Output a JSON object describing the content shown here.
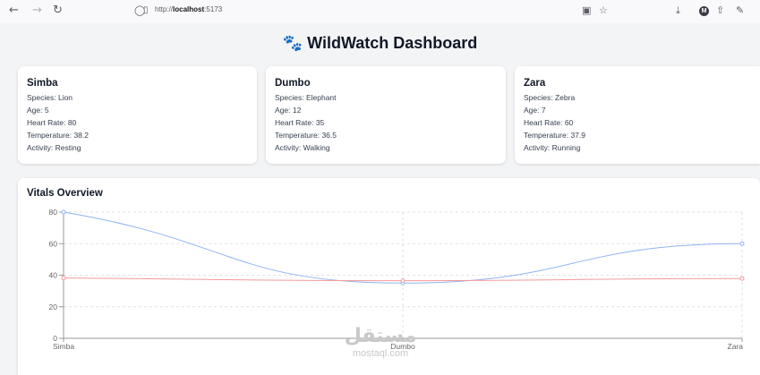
{
  "browser": {
    "url_prefix": "http://",
    "url_host": "localhost",
    "url_suffix": ":5173"
  },
  "header": {
    "icon": "paw-prints-icon",
    "title": "WildWatch Dashboard"
  },
  "animals": [
    {
      "name": "Simba",
      "species": "Species: Lion",
      "age": "Age: 5",
      "heart_rate": "Heart Rate: 80",
      "temperature": "Temperature: 38.2",
      "activity": "Activity: Resting"
    },
    {
      "name": "Dumbo",
      "species": "Species: Elephant",
      "age": "Age: 12",
      "heart_rate": "Heart Rate: 35",
      "temperature": "Temperature: 36.5",
      "activity": "Activity: Walking"
    },
    {
      "name": "Zara",
      "species": "Species: Zebra",
      "age": "Age: 7",
      "heart_rate": "Heart Rate: 60",
      "temperature": "Temperature: 37.9",
      "activity": "Activity: Running"
    }
  ],
  "chart": {
    "title": "Vitals Overview"
  },
  "chart_data": {
    "type": "line",
    "title": "Vitals Overview",
    "categories": [
      "Simba",
      "Dumbo",
      "Zara"
    ],
    "series": [
      {
        "values": [
          80,
          35,
          60
        ],
        "color": "#8fb4f2"
      },
      {
        "values": [
          38.2,
          36.5,
          37.9
        ],
        "color": "#f29b9b"
      }
    ],
    "ylim": [
      0,
      80
    ],
    "yticks": [
      0,
      20,
      40,
      60,
      80
    ],
    "grid": true,
    "curve": "smooth"
  },
  "watermark": {
    "arabic": "مستقل",
    "latin": "mostaql.com"
  }
}
